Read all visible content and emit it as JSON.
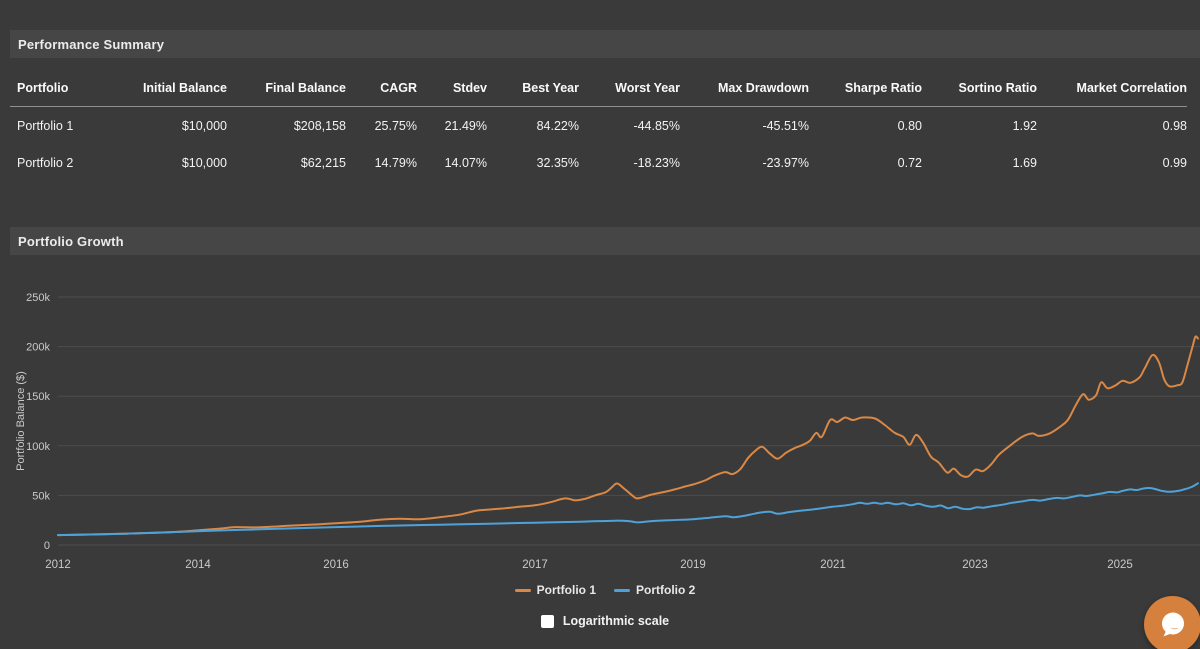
{
  "sections": {
    "performance_summary": {
      "title": "Performance Summary"
    },
    "portfolio_growth": {
      "title": "Portfolio Growth"
    }
  },
  "table": {
    "columns": [
      "Portfolio",
      "Initial Balance",
      "Final Balance",
      "CAGR",
      "Stdev",
      "Best Year",
      "Worst Year",
      "Max Drawdown",
      "Sharpe Ratio",
      "Sortino Ratio",
      "Market Correlation"
    ],
    "rows": [
      [
        "Portfolio 1",
        "$10,000",
        "$208,158",
        "25.75%",
        "21.49%",
        "84.22%",
        "-44.85%",
        "-45.51%",
        "0.80",
        "1.92",
        "0.98"
      ],
      [
        "Portfolio 2",
        "$10,000",
        "$62,215",
        "14.79%",
        "14.07%",
        "32.35%",
        "-18.23%",
        "-23.97%",
        "0.72",
        "1.69",
        "0.99"
      ]
    ]
  },
  "chart_data": {
    "type": "line",
    "title": "Portfolio Growth",
    "xlabel": "",
    "ylabel": "Portfolio Balance ($)",
    "unit": "USD thousands",
    "ylim": [
      0,
      250
    ],
    "yticks": [
      0,
      50,
      100,
      150,
      200,
      250
    ],
    "ytick_labels": [
      "0",
      "50k",
      "100k",
      "150k",
      "200k",
      "250k"
    ],
    "xticks": [
      2012,
      2014,
      2016,
      2017,
      2019,
      2021,
      2023,
      2025
    ],
    "xtick_labels": [
      "2012",
      "2014",
      "2016",
      "2017",
      "2019",
      "2021",
      "2023",
      "2025"
    ],
    "grid": true,
    "legend_position": "bottom",
    "series": [
      {
        "name": "Portfolio 1",
        "color": "#d98845",
        "x": [
          2012.0,
          2012.46,
          2012.89,
          2013.31,
          2013.74,
          2014.03,
          2014.32,
          2014.54,
          2014.9,
          2015.19,
          2015.48,
          2015.77,
          2016.0,
          2016.12,
          2016.22,
          2016.32,
          2016.42,
          2016.52,
          2016.62,
          2016.67,
          2016.72,
          2016.82,
          2016.92,
          2017.0,
          2017.19,
          2017.38,
          2017.51,
          2017.63,
          2017.76,
          2017.89,
          2017.97,
          2018.04,
          2018.14,
          2018.23,
          2018.3,
          2018.46,
          2018.61,
          2018.77,
          2018.9,
          2019.0,
          2019.17,
          2019.31,
          2019.46,
          2019.56,
          2019.67,
          2019.79,
          2019.89,
          2019.99,
          2020.1,
          2020.21,
          2020.33,
          2020.46,
          2020.57,
          2020.67,
          2020.76,
          2020.84,
          2020.96,
          2021.06,
          2021.17,
          2021.28,
          2021.41,
          2021.59,
          2021.73,
          2021.87,
          2021.99,
          2022.08,
          2022.17,
          2022.27,
          2022.38,
          2022.49,
          2022.61,
          2022.7,
          2022.8,
          2022.9,
          2023.01,
          2023.11,
          2023.22,
          2023.33,
          2023.48,
          2023.65,
          2023.79,
          2023.88,
          2024.03,
          2024.17,
          2024.28,
          2024.39,
          2024.49,
          2024.57,
          2024.67,
          2024.74,
          2024.83,
          2024.94,
          2025.02,
          2025.08,
          2025.15,
          2025.19,
          2025.25,
          2025.3,
          2025.34,
          2025.38,
          2025.44,
          2025.48,
          2025.52,
          2025.56,
          2025.58,
          2025.6
        ],
        "values": [
          10,
          10.6,
          11.3,
          12.2,
          13.5,
          15,
          16.5,
          18,
          17.8,
          19,
          20,
          21,
          22,
          23.5,
          25.5,
          26.5,
          26,
          28,
          30.5,
          33,
          35,
          36.5,
          38.5,
          40,
          43,
          47,
          45,
          46.5,
          50,
          53,
          58,
          62,
          56,
          50,
          47,
          50.5,
          53,
          56,
          59,
          61,
          65,
          70,
          73.5,
          71.5,
          76,
          88,
          95,
          99,
          92,
          87,
          93,
          98,
          101,
          105,
          113,
          109,
          126,
          124,
          128.5,
          126,
          128.5,
          127.5,
          121,
          113,
          109,
          101,
          111,
          103,
          89,
          83,
          73,
          77,
          70.5,
          69,
          76,
          74.5,
          81,
          91,
          100,
          109,
          112.5,
          110,
          112.5,
          119,
          126,
          141,
          152,
          146.5,
          151,
          164,
          158,
          161,
          165.5,
          163.5,
          169,
          178,
          191.5,
          184,
          167,
          160,
          161,
          164,
          182,
          201,
          210,
          208.2
        ]
      },
      {
        "name": "Portfolio 2",
        "color": "#4fa2d9",
        "x": [
          2012.0,
          2012.74,
          2013.46,
          2014.03,
          2014.75,
          2015.48,
          2016.0,
          2016.27,
          2016.52,
          2016.77,
          2017.0,
          2017.57,
          2018.01,
          2018.2,
          2018.3,
          2018.46,
          2018.71,
          2019.0,
          2019.24,
          2019.46,
          2019.58,
          2019.74,
          2019.87,
          2019.99,
          2020.1,
          2020.21,
          2020.36,
          2020.53,
          2020.67,
          2020.84,
          2020.99,
          2021.13,
          2021.27,
          2021.38,
          2021.48,
          2021.58,
          2021.68,
          2021.77,
          2021.89,
          2021.99,
          2022.1,
          2022.2,
          2022.31,
          2022.41,
          2022.52,
          2022.62,
          2022.72,
          2022.83,
          2022.92,
          2023.03,
          2023.12,
          2023.23,
          2023.37,
          2023.51,
          2023.65,
          2023.79,
          2023.9,
          2024.03,
          2024.13,
          2024.23,
          2024.34,
          2024.45,
          2024.54,
          2024.64,
          2024.75,
          2024.86,
          2024.96,
          2025.02,
          2025.08,
          2025.13,
          2025.18,
          2025.23,
          2025.28,
          2025.32,
          2025.38,
          2025.43,
          2025.48,
          2025.55,
          2025.6
        ],
        "values": [
          10,
          11,
          12.5,
          14,
          15.5,
          17,
          18,
          19.5,
          20.5,
          21.5,
          22.5,
          23.5,
          24.5,
          24,
          22.8,
          24,
          25,
          26,
          27.5,
          29,
          28,
          29.5,
          31.5,
          33,
          33.5,
          31.5,
          33,
          34.5,
          35.5,
          37,
          38.5,
          39.5,
          41,
          42.5,
          41.5,
          42.5,
          41.5,
          42.5,
          41,
          42,
          40,
          41.5,
          39.5,
          38.5,
          39.8,
          37,
          38.5,
          36.5,
          36.2,
          38,
          37.6,
          39,
          40.5,
          42.5,
          44,
          45.5,
          44.8,
          46.5,
          47.5,
          47,
          48.5,
          50,
          49.4,
          50.6,
          52,
          53.5,
          53,
          54.5,
          56,
          55.4,
          57,
          57.5,
          56,
          54.6,
          53.6,
          54.2,
          55.5,
          58.5,
          62.2
        ]
      }
    ]
  },
  "controls": {
    "log_scale_label": "Logarithmic scale",
    "log_scale_checked": false
  },
  "colors": {
    "background": "#3a3a3a",
    "panel_header": "#464646",
    "grid": "#4d4d4d",
    "axis_text": "#c9c9c9",
    "portfolio1": "#d98845",
    "portfolio2": "#4fa2d9",
    "chat_button": "#d6803e"
  }
}
